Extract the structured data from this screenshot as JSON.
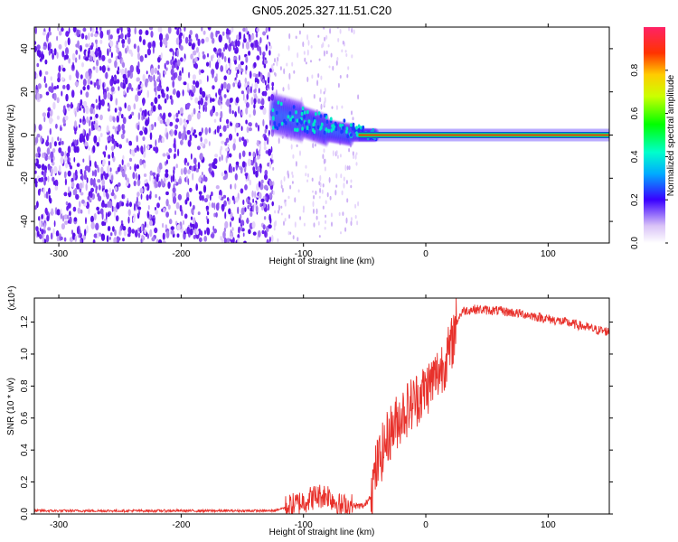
{
  "title": "GN05.2025.327.11.51.C20",
  "chart_data": [
    {
      "type": "heatmap",
      "name": "spectrogram",
      "xlabel": "Height of straight line (km)",
      "ylabel": "Frequency (Hz)",
      "xlim": [
        -320,
        150
      ],
      "ylim": [
        -50,
        50
      ],
      "xticks": [
        -300,
        -200,
        -100,
        0,
        100
      ],
      "yticks": [
        -40,
        -20,
        0,
        20,
        40
      ],
      "xtick_labels": [
        "-300",
        "-200",
        "-100",
        "0",
        "100"
      ],
      "ytick_labels": [
        "-40",
        "-20",
        "0",
        "20",
        "40"
      ],
      "noise_region_x": [
        -320,
        -125
      ],
      "diffuse_region_x": [
        -125,
        -55
      ],
      "tone_line": {
        "x": [
          -55,
          150
        ],
        "frequency": 0,
        "level": 0.92
      },
      "transition_band": {
        "x": [
          -125,
          -100,
          -80,
          -60,
          -40
        ],
        "f_center": [
          10,
          6,
          2,
          0,
          0
        ],
        "level": [
          0.35,
          0.3,
          0.25,
          0.2,
          0.6
        ]
      },
      "colorbar": {
        "label": "Normalized spectral amplitude",
        "range": [
          0,
          1
        ],
        "ticks": [
          0.0,
          0.2,
          0.4,
          0.6,
          0.8
        ],
        "tick_labels": [
          "0.0",
          "0.2",
          "0.4",
          "0.6",
          "0.8"
        ]
      }
    },
    {
      "type": "line",
      "name": "snr",
      "xlabel": "Height of straight line (km)",
      "ylabel": "SNR (10 * v/v)",
      "y_scale_label": "(x10⁴)",
      "xlim": [
        -320,
        150
      ],
      "ylim": [
        0,
        1.35
      ],
      "xticks": [
        -300,
        -200,
        -100,
        0,
        100
      ],
      "yticks": [
        0.0,
        0.2,
        0.4,
        0.6,
        0.8,
        1.0,
        1.2
      ],
      "xtick_labels": [
        "-300",
        "-200",
        "-100",
        "0",
        "100"
      ],
      "ytick_labels": [
        "0.0",
        "0.2",
        "0.4",
        "0.6",
        "0.8",
        "1.0",
        "1.2"
      ],
      "color": "#e8312b",
      "series": [
        {
          "name": "SNR",
          "x": [
            -320,
            -200,
            -125,
            -110,
            -100,
            -90,
            -80,
            -70,
            -60,
            -50,
            -45,
            -40,
            -30,
            -20,
            -10,
            0,
            10,
            20,
            25,
            30,
            40,
            60,
            80,
            100,
            120,
            140,
            150
          ],
          "y": [
            0.02,
            0.02,
            0.02,
            0.05,
            0.08,
            0.11,
            0.12,
            0.05,
            0.05,
            0.05,
            0.12,
            0.3,
            0.5,
            0.62,
            0.7,
            0.78,
            0.88,
            1.02,
            1.2,
            1.27,
            1.28,
            1.27,
            1.25,
            1.22,
            1.19,
            1.15,
            1.14
          ]
        }
      ]
    }
  ],
  "colors": {
    "line": "#e8312b",
    "background": "#ffffff",
    "axes": "#000000"
  }
}
